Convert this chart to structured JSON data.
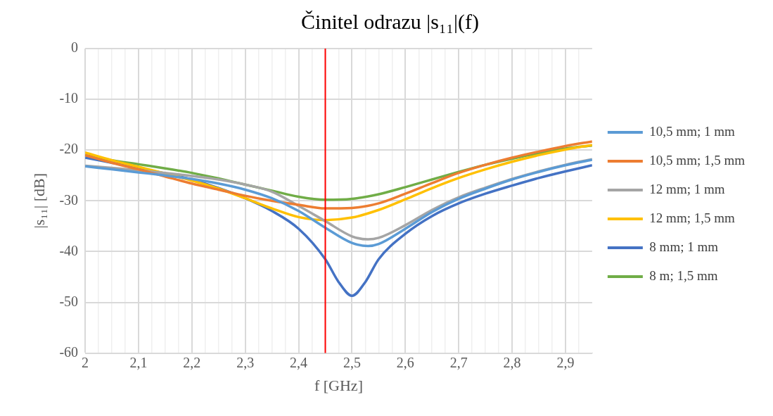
{
  "chart_data": {
    "type": "line",
    "title": "Činitel odrazu |s₁₁|(f)",
    "xlabel": "f [GHz]",
    "ylabel": "|s₁₁| [dB]",
    "xlim": [
      2,
      2.95
    ],
    "xticks": [
      {
        "value": 2,
        "label": "2"
      },
      {
        "value": 2.025,
        "label": null
      },
      {
        "value": 2.05,
        "label": null
      },
      {
        "value": 2.075,
        "label": null
      },
      {
        "value": 2.1,
        "label": "2,1"
      },
      {
        "value": 2.125,
        "label": null
      },
      {
        "value": 2.15,
        "label": null
      },
      {
        "value": 2.175,
        "label": null
      },
      {
        "value": 2.2,
        "label": "2,2"
      },
      {
        "value": 2.225,
        "label": null
      },
      {
        "value": 2.25,
        "label": null
      },
      {
        "value": 2.275,
        "label": null
      },
      {
        "value": 2.3,
        "label": "2,3"
      },
      {
        "value": 2.325,
        "label": null
      },
      {
        "value": 2.35,
        "label": null
      },
      {
        "value": 2.375,
        "label": null
      },
      {
        "value": 2.4,
        "label": "2,4"
      },
      {
        "value": 2.425,
        "label": null
      },
      {
        "value": 2.45,
        "label": null
      },
      {
        "value": 2.475,
        "label": null
      },
      {
        "value": 2.5,
        "label": "2,5"
      },
      {
        "value": 2.525,
        "label": null
      },
      {
        "value": 2.55,
        "label": null
      },
      {
        "value": 2.575,
        "label": null
      },
      {
        "value": 2.6,
        "label": "2,6"
      },
      {
        "value": 2.625,
        "label": null
      },
      {
        "value": 2.65,
        "label": null
      },
      {
        "value": 2.675,
        "label": null
      },
      {
        "value": 2.7,
        "label": "2,7"
      },
      {
        "value": 2.725,
        "label": null
      },
      {
        "value": 2.75,
        "label": null
      },
      {
        "value": 2.775,
        "label": null
      },
      {
        "value": 2.8,
        "label": "2,8"
      },
      {
        "value": 2.825,
        "label": null
      },
      {
        "value": 2.85,
        "label": null
      },
      {
        "value": 2.875,
        "label": null
      },
      {
        "value": 2.9,
        "label": "2,9"
      },
      {
        "value": 2.925,
        "label": null
      }
    ],
    "ylim": [
      -60,
      0
    ],
    "yticks": [
      -60,
      -50,
      -40,
      -30,
      -20,
      -10,
      0
    ],
    "grid": true,
    "legend": "right",
    "marker": "none",
    "line_style": "solid",
    "ref_lines": [
      {
        "axis": "x",
        "value": 2.45,
        "label": null,
        "color": "#ff0000"
      }
    ],
    "series": [
      {
        "name": "10,5 mm; 1 mm",
        "color": "#5b9bd5",
        "x": [
          2,
          2.05,
          2.1,
          2.15,
          2.2,
          2.25,
          2.3,
          2.35,
          2.4,
          2.45,
          2.5,
          2.53,
          2.55,
          2.6,
          2.65,
          2.7,
          2.75,
          2.8,
          2.85,
          2.9,
          2.95
        ],
        "values": [
          -23.2,
          -23.8,
          -24.4,
          -25,
          -25.7,
          -26.6,
          -27.8,
          -29.5,
          -32,
          -35.3,
          -38.3,
          -38.9,
          -38.5,
          -35.5,
          -32.2,
          -29.6,
          -27.6,
          -25.8,
          -24.3,
          -23,
          -21.9
        ]
      },
      {
        "name": "10,5 mm; 1,5 mm",
        "color": "#ed7d31",
        "x": [
          2,
          2.05,
          2.1,
          2.15,
          2.2,
          2.25,
          2.3,
          2.35,
          2.4,
          2.45,
          2.5,
          2.55,
          2.6,
          2.65,
          2.7,
          2.75,
          2.8,
          2.85,
          2.9,
          2.95
        ],
        "values": [
          -21,
          -22.5,
          -23.8,
          -25.2,
          -26.6,
          -27.8,
          -29,
          -30,
          -30.8,
          -31.5,
          -31.4,
          -30.5,
          -28.6,
          -26.5,
          -24.5,
          -22.9,
          -21.5,
          -20.3,
          -19.2,
          -18.3
        ]
      },
      {
        "name": "12 mm; 1 mm",
        "color": "#a5a5a5",
        "x": [
          2,
          2.05,
          2.1,
          2.15,
          2.2,
          2.25,
          2.3,
          2.35,
          2.4,
          2.45,
          2.5,
          2.53,
          2.55,
          2.6,
          2.65,
          2.7,
          2.75,
          2.8,
          2.85,
          2.9,
          2.95
        ],
        "values": [
          -23.1,
          -23.5,
          -24,
          -24.5,
          -25.1,
          -25.8,
          -26.8,
          -28.2,
          -31,
          -34,
          -37,
          -37.6,
          -37.3,
          -34.8,
          -31.8,
          -29.3,
          -27.4,
          -25.7,
          -24.2,
          -22.9,
          -21.8
        ]
      },
      {
        "name": "12 mm; 1,5 mm",
        "color": "#ffc000",
        "x": [
          2,
          2.05,
          2.1,
          2.15,
          2.2,
          2.25,
          2.3,
          2.35,
          2.4,
          2.45,
          2.5,
          2.55,
          2.6,
          2.65,
          2.7,
          2.75,
          2.8,
          2.85,
          2.9,
          2.95
        ],
        "values": [
          -20.5,
          -22,
          -23.3,
          -24.6,
          -26,
          -27.6,
          -29.5,
          -31.5,
          -33.2,
          -33.8,
          -33.3,
          -31.8,
          -29.7,
          -27.5,
          -25.5,
          -23.8,
          -22.3,
          -21,
          -19.9,
          -19
        ]
      },
      {
        "name": "8 mm; 1 mm",
        "color": "#4472c4",
        "x": [
          2,
          2.05,
          2.1,
          2.15,
          2.2,
          2.25,
          2.3,
          2.35,
          2.4,
          2.45,
          2.475,
          2.5,
          2.525,
          2.55,
          2.6,
          2.65,
          2.7,
          2.75,
          2.8,
          2.85,
          2.9,
          2.95
        ],
        "values": [
          -21.5,
          -22.5,
          -23.5,
          -24.6,
          -25.8,
          -27.5,
          -29.5,
          -32,
          -35.5,
          -41.5,
          -46,
          -48.7,
          -46,
          -41.5,
          -36.5,
          -33,
          -30.5,
          -28.6,
          -27,
          -25.5,
          -24.2,
          -23
        ]
      },
      {
        "name": "8 m; 1,5 mm",
        "color": "#70ad47",
        "x": [
          2,
          2.05,
          2.1,
          2.15,
          2.2,
          2.25,
          2.3,
          2.35,
          2.4,
          2.45,
          2.5,
          2.55,
          2.6,
          2.65,
          2.7,
          2.75,
          2.8,
          2.85,
          2.9,
          2.95
        ],
        "values": [
          -21,
          -22,
          -22.8,
          -23.6,
          -24.5,
          -25.6,
          -26.8,
          -28,
          -29.2,
          -29.8,
          -29.6,
          -28.7,
          -27.3,
          -25.8,
          -24.3,
          -22.9,
          -21.7,
          -20.6,
          -19.7,
          -19.1
        ]
      }
    ]
  }
}
